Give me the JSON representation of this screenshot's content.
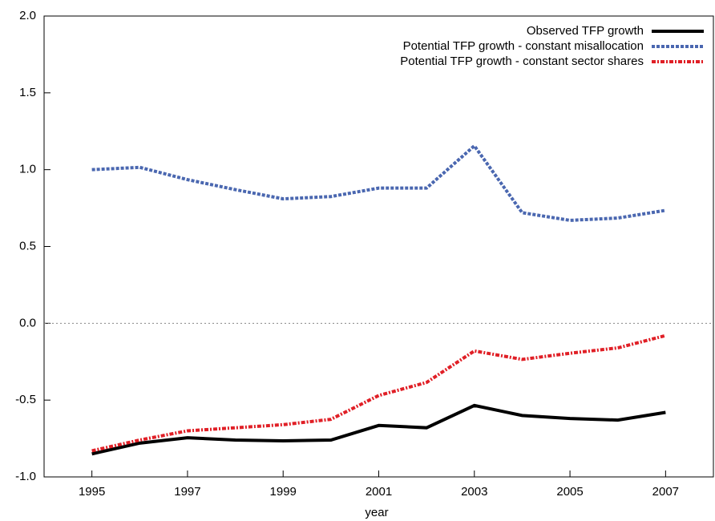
{
  "chart_data": {
    "type": "line",
    "x_label": "year",
    "x": [
      1995,
      1996,
      1997,
      1998,
      1999,
      2000,
      2001,
      2002,
      2003,
      2004,
      2005,
      2006,
      2007
    ],
    "series": [
      {
        "name": "Observed TFP growth",
        "color": "#000000",
        "style": "solid",
        "values": [
          -0.85,
          -0.78,
          -0.745,
          -0.76,
          -0.765,
          -0.76,
          -0.665,
          -0.68,
          -0.535,
          -0.6,
          -0.62,
          -0.63,
          -0.58
        ]
      },
      {
        "name": "Potential TFP growth - constant misallocation",
        "color": "#4a67b0",
        "style": "dashed",
        "values": [
          1.0,
          1.015,
          0.935,
          0.87,
          0.81,
          0.825,
          0.88,
          0.88,
          1.155,
          0.72,
          0.67,
          0.685,
          0.735
        ]
      },
      {
        "name": "Potential TFP growth - constant sector shares",
        "color": "#e01f26",
        "style": "dashdot",
        "values": [
          -0.83,
          -0.76,
          -0.7,
          -0.68,
          -0.66,
          -0.625,
          -0.47,
          -0.385,
          -0.18,
          -0.235,
          -0.195,
          -0.16,
          -0.08
        ]
      }
    ],
    "xlim": [
      1994,
      2008
    ],
    "xticks": [
      1995,
      1997,
      1999,
      2001,
      2003,
      2005,
      2007
    ],
    "ylim": [
      -1.0,
      2.0
    ],
    "yticks": [
      {
        "value": -1.0,
        "label": "-1.0"
      },
      -0.5,
      {
        "value": 0.0,
        "label": "0.0"
      },
      0.5,
      {
        "value": 1.0,
        "label": "1.0"
      },
      1.5,
      {
        "value": 2.0,
        "label": "2.0"
      }
    ],
    "zero_line": true,
    "legend": "upper right"
  }
}
